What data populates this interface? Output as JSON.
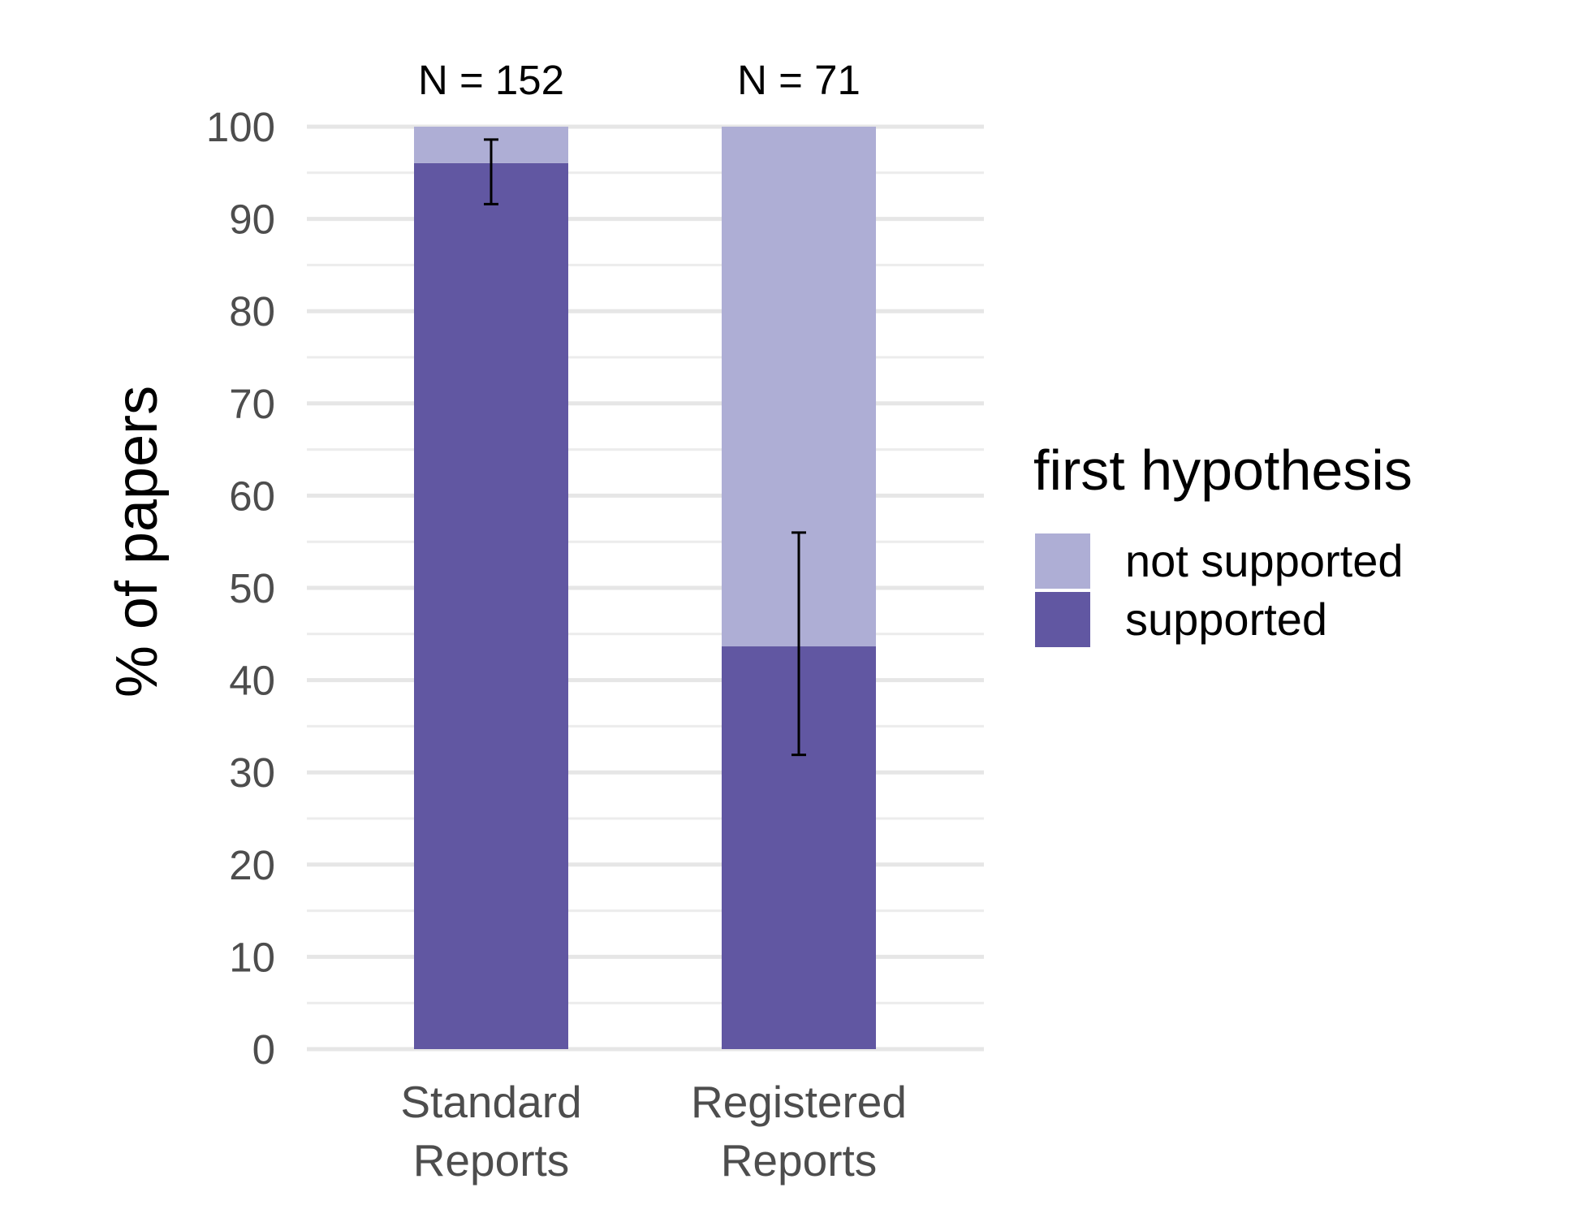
{
  "chart_data": {
    "type": "bar",
    "stacked": true,
    "ylabel": "% of papers",
    "xlabel": "",
    "ylim": [
      0,
      100
    ],
    "yticks": [
      0,
      10,
      20,
      30,
      40,
      50,
      60,
      70,
      80,
      90,
      100
    ],
    "grid": true,
    "categories": [
      [
        "Standard",
        "Reports"
      ],
      [
        "Registered",
        "Reports"
      ]
    ],
    "group_annotations": [
      "N = 152",
      "N = 71"
    ],
    "series": [
      {
        "name": "supported",
        "values": [
          96.05,
          43.66
        ],
        "color": "#6157a2"
      },
      {
        "name": "not supported",
        "values": [
          3.95,
          56.34
        ],
        "color": "#aeaed5"
      }
    ],
    "error_bars": {
      "series": "supported",
      "lower": [
        91.6,
        31.9
      ],
      "upper": [
        98.6,
        56.0
      ]
    },
    "legend": {
      "title": "first hypothesis",
      "placement": "right",
      "items": [
        "not supported",
        "supported"
      ]
    }
  }
}
